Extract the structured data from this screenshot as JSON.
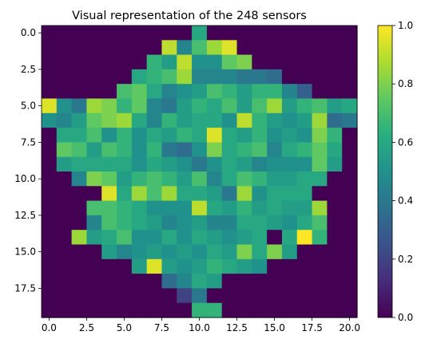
{
  "chart_data": {
    "type": "heatmap",
    "title": "Visual representation of the 248 sensors",
    "rows": 20,
    "cols": 21,
    "x_ticks": [
      0,
      2.5,
      5,
      7.5,
      10,
      12.5,
      15,
      17.5,
      20
    ],
    "x_tick_labels": [
      "0.0",
      "2.5",
      "5.0",
      "7.5",
      "10.0",
      "12.5",
      "15.0",
      "17.5",
      "20.0"
    ],
    "y_ticks": [
      0,
      2.5,
      5,
      7.5,
      10,
      12.5,
      15,
      17.5
    ],
    "y_tick_labels": [
      "0.0",
      "2.5",
      "5.0",
      "7.5",
      "10.0",
      "12.5",
      "15.0",
      "17.5"
    ],
    "colorbar": {
      "colormap": "viridis",
      "range": [
        0,
        1
      ],
      "ticks": [
        0,
        0.2,
        0.4,
        0.6,
        0.8,
        1.0
      ],
      "tick_labels": [
        "0.0",
        "0.2",
        "0.4",
        "0.6",
        "0.8",
        "1.0"
      ]
    },
    "values": [
      [
        0,
        0,
        0,
        0,
        0,
        0,
        0,
        0,
        0,
        0,
        0.6,
        0,
        0,
        0,
        0,
        0,
        0,
        0,
        0,
        0,
        0
      ],
      [
        0,
        0,
        0,
        0,
        0,
        0,
        0,
        0,
        0.9,
        0.45,
        0.7,
        0.85,
        0.95,
        0,
        0,
        0,
        0,
        0,
        0,
        0,
        0
      ],
      [
        0,
        0,
        0,
        0,
        0,
        0,
        0,
        0.65,
        0.55,
        0.9,
        0.5,
        0.5,
        0.75,
        0.8,
        0,
        0,
        0,
        0,
        0,
        0,
        0
      ],
      [
        0,
        0,
        0,
        0,
        0,
        0,
        0.6,
        0.65,
        0.7,
        0.85,
        0.45,
        0.45,
        0.45,
        0.4,
        0.4,
        0.35,
        0,
        0,
        0,
        0,
        0
      ],
      [
        0,
        0,
        0,
        0,
        0,
        0.7,
        0.75,
        0.6,
        0.45,
        0.5,
        0.55,
        0.7,
        0.65,
        0.55,
        0.65,
        0.65,
        0.45,
        0.3,
        0,
        0,
        0
      ],
      [
        0.95,
        0.5,
        0.4,
        0.85,
        0.8,
        0.65,
        0.75,
        0.45,
        0.4,
        0.55,
        0.65,
        0.6,
        0.7,
        0.55,
        0.7,
        0.85,
        0.55,
        0.65,
        0.7,
        0.55,
        0.6
      ],
      [
        0.5,
        0.45,
        0.55,
        0.75,
        0.8,
        0.85,
        0.6,
        0.45,
        0.65,
        0.55,
        0.6,
        0.6,
        0.5,
        0.9,
        0.65,
        0.55,
        0.5,
        0.55,
        0.85,
        0.35,
        0.4
      ],
      [
        0,
        0.6,
        0.6,
        0.7,
        0.5,
        0.65,
        0.5,
        0.6,
        0.55,
        0.65,
        0.6,
        0.95,
        0.6,
        0.55,
        0.65,
        0.5,
        0.55,
        0.5,
        0.8,
        0.65,
        0
      ],
      [
        0,
        0.75,
        0.7,
        0.55,
        0.7,
        0.65,
        0.5,
        0.65,
        0.4,
        0.35,
        0.5,
        0.8,
        0.6,
        0.65,
        0.7,
        0.45,
        0.6,
        0.65,
        0.75,
        0.6,
        0
      ],
      [
        0,
        0.55,
        0.6,
        0.6,
        0.6,
        0.6,
        0.5,
        0.6,
        0.55,
        0.5,
        0.4,
        0.5,
        0.6,
        0.55,
        0.45,
        0.5,
        0.5,
        0.5,
        0.75,
        0.55,
        0
      ],
      [
        0,
        0,
        0.45,
        0.8,
        0.75,
        0.55,
        0.65,
        0.7,
        0.65,
        0.55,
        0.7,
        0.45,
        0.6,
        0.7,
        0.65,
        0.55,
        0.55,
        0.6,
        0.6,
        0,
        0
      ],
      [
        0,
        0,
        0,
        0,
        0.95,
        0.6,
        0.85,
        0.7,
        0.85,
        0.6,
        0.6,
        0.55,
        0.4,
        0.85,
        0.5,
        0.6,
        0.6,
        0.6,
        0,
        0,
        0
      ],
      [
        0,
        0,
        0,
        0.7,
        0.7,
        0.65,
        0.6,
        0.5,
        0.5,
        0.5,
        0.9,
        0.6,
        0.55,
        0.65,
        0.55,
        0.6,
        0.55,
        0.55,
        0.85,
        0,
        0
      ],
      [
        0,
        0,
        0,
        0.45,
        0.7,
        0.65,
        0.6,
        0.55,
        0.45,
        0.5,
        0.55,
        0.45,
        0.45,
        0.6,
        0.6,
        0.55,
        0.5,
        0.6,
        0.7,
        0,
        0
      ],
      [
        0,
        0,
        0.85,
        0.55,
        0.6,
        0.7,
        0.5,
        0.5,
        0.6,
        0.5,
        0.6,
        0.55,
        0.5,
        0.55,
        0.6,
        0,
        0.6,
        1.0,
        0.65,
        0,
        0
      ],
      [
        0,
        0,
        0,
        0,
        0.55,
        0.45,
        0.5,
        0.55,
        0.5,
        0.55,
        0.5,
        0.6,
        0.55,
        0.8,
        0.6,
        0.8,
        0.55,
        0,
        0,
        0,
        0
      ],
      [
        0,
        0,
        0,
        0,
        0,
        0,
        0.55,
        0.95,
        0.55,
        0.5,
        0.55,
        0.65,
        0.6,
        0.55,
        0.5,
        0,
        0,
        0,
        0,
        0,
        0
      ],
      [
        0,
        0,
        0,
        0,
        0,
        0,
        0,
        0,
        0.35,
        0.45,
        0.6,
        0.55,
        0,
        0,
        0,
        0,
        0,
        0,
        0,
        0,
        0
      ],
      [
        0,
        0,
        0,
        0,
        0,
        0,
        0,
        0,
        0,
        0.2,
        0.4,
        0,
        0,
        0,
        0,
        0,
        0,
        0,
        0,
        0,
        0
      ],
      [
        0,
        0,
        0,
        0,
        0,
        0,
        0,
        0,
        0,
        0,
        0.65,
        0.65,
        0,
        0,
        0,
        0,
        0,
        0,
        0,
        0,
        0
      ]
    ]
  }
}
